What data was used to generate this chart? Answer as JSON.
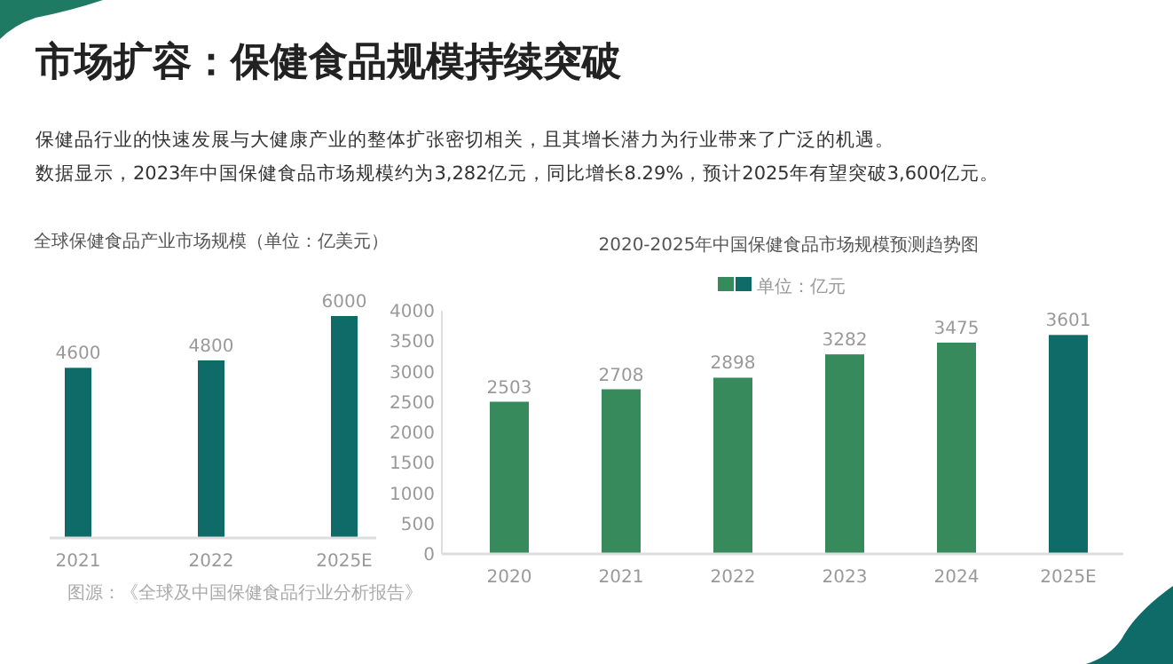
{
  "chart_data": [
    {
      "type": "other",
      "title": "市场扩容：保健食品规模持续突破",
      "annotations": [
        "保健品行业的快速发展与大健康产业的整体扩张密切相关，且其增长潜力为行业带来了广泛的机遇。",
        "数据显示，2023年中国保健食品市场规模约为3,282亿元，同比增长8.29%，预计2025年有望突破3,600亿元。"
      ]
    },
    {
      "type": "bar",
      "title": "全球保健食品产业市场规模（单位：亿美元）",
      "categories": [
        "2021",
        "2022",
        "2025E"
      ],
      "values": [
        4600,
        4800,
        6000
      ],
      "color": "#0f6b68",
      "data_labels": true,
      "tick_labels": "x",
      "annotations": [
        "图源：《全球及中国保健食品行业分析报告》"
      ]
    },
    {
      "type": "bar",
      "title": "2020-2025年中国保健食品市场规模预测趋势图",
      "categories": [
        "2020",
        "2021",
        "2022",
        "2023",
        "2024",
        "2025E"
      ],
      "series": [
        {
          "name": "单位：亿元",
          "colors": [
            "#378a5b",
            "#378a5b",
            "#378a5b",
            "#378a5b",
            "#378a5b",
            "#0f6b68"
          ],
          "values": [
            2503,
            2708,
            2898,
            3282,
            3475,
            3601
          ]
        }
      ],
      "ylim": [
        0,
        4000
      ],
      "yticks": [
        0,
        500,
        1000,
        1500,
        2000,
        2500,
        3000,
        3500,
        4000
      ],
      "data_labels": true,
      "legend": "top"
    }
  ]
}
